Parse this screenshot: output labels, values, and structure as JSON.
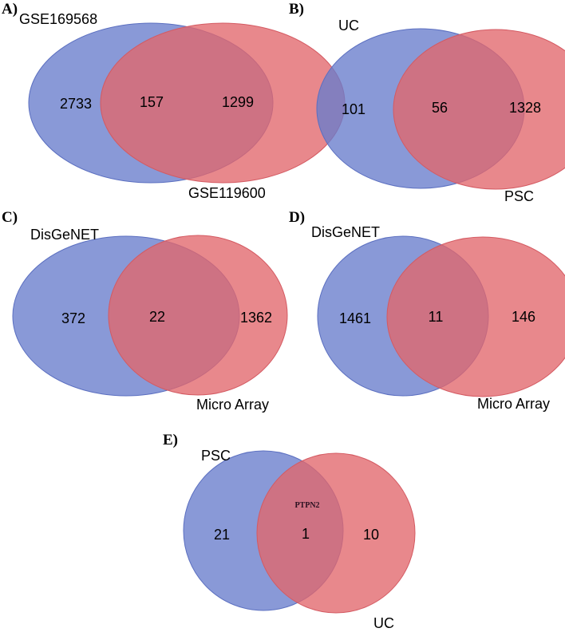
{
  "colors": {
    "set_a": "#7d8fd6",
    "set_b": "#e68589",
    "overlap": "#a24e70"
  },
  "panels": [
    {
      "label": "A)",
      "set_a": "GSE169568",
      "set_b": "GSE119600",
      "only_a": "2733",
      "both": "157",
      "only_b": "1299"
    },
    {
      "label": "B)",
      "set_a": "UC",
      "set_b": "PSC",
      "only_a": "101",
      "both": "56",
      "only_b": "1328"
    },
    {
      "label": "C)",
      "set_a": "DisGeNET",
      "set_b": "Micro Array",
      "only_a": "372",
      "both": "22",
      "only_b": "1362"
    },
    {
      "label": "D)",
      "set_a": "DisGeNET",
      "set_b": "Micro Array",
      "only_a": "1461",
      "both": "11",
      "only_b": "146"
    },
    {
      "label": "E)",
      "set_a": "PSC",
      "set_b": "UC",
      "only_a": "21",
      "both": "1",
      "only_b": "10",
      "overlap_note": "PTPN2"
    }
  ]
}
